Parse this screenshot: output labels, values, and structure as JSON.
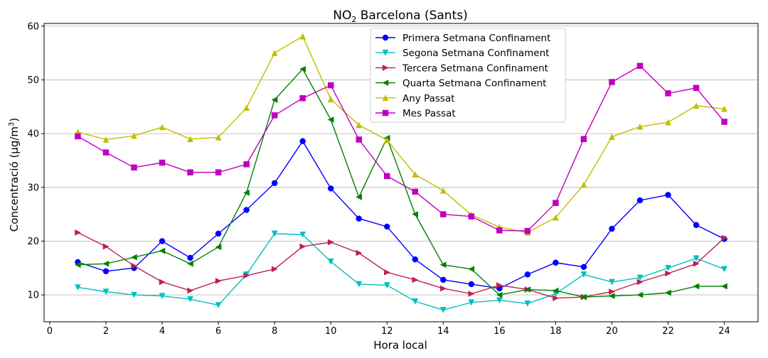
{
  "chart_data": {
    "type": "line",
    "title_main": "NO",
    "title_sub": "2",
    "title_rest": " Barcelona (Sants)",
    "xlabel": "Hora local",
    "ylabel_pre": "Concentració (μg/m",
    "ylabel_sup": "3",
    "ylabel_post": ")",
    "xlim": [
      -0.2,
      25.2
    ],
    "ylim": [
      5,
      60.5
    ],
    "xticks": [
      0,
      2,
      4,
      6,
      8,
      10,
      12,
      14,
      16,
      18,
      20,
      22,
      24
    ],
    "yticks": [
      10,
      20,
      30,
      40,
      50,
      60
    ],
    "grid": "horizontal",
    "legend_position": "top-center",
    "x": [
      1,
      2,
      3,
      4,
      5,
      6,
      7,
      8,
      9,
      10,
      11,
      12,
      13,
      14,
      15,
      16,
      17,
      18,
      19,
      20,
      21,
      22,
      23,
      24
    ],
    "series": [
      {
        "name": "Primera Setmana Confinament",
        "color": "#0000ff",
        "marker": "circle",
        "values": [
          16.1,
          14.4,
          15.0,
          20.0,
          16.9,
          21.4,
          25.8,
          30.8,
          38.6,
          29.8,
          24.2,
          22.7,
          16.6,
          12.8,
          12.0,
          11.2,
          13.8,
          16.0,
          15.2,
          22.3,
          27.6,
          28.6,
          23.0,
          20.4
        ]
      },
      {
        "name": "Segona Setmana Confinament",
        "color": "#00bfbf",
        "marker": "triangle-down",
        "values": [
          11.4,
          10.6,
          10.0,
          9.8,
          9.2,
          8.1,
          13.8,
          21.4,
          21.2,
          16.2,
          12.0,
          11.8,
          8.8,
          7.2,
          8.6,
          9.0,
          8.4,
          10.2,
          13.8,
          12.4,
          13.2,
          15.0,
          16.8,
          14.8
        ]
      },
      {
        "name": "Tercera Setmana Confinament",
        "color": "#bf1f4f",
        "marker": "triangle-right",
        "values": [
          21.6,
          19.0,
          15.4,
          12.4,
          10.8,
          12.6,
          13.6,
          14.8,
          19.0,
          19.8,
          17.8,
          14.2,
          12.8,
          11.2,
          10.2,
          11.8,
          11.0,
          9.4,
          9.6,
          10.6,
          12.4,
          14.0,
          15.8,
          20.6
        ]
      },
      {
        "name": "Quarta Setmana Confinament",
        "color": "#008000",
        "marker": "triangle-left",
        "values": [
          15.6,
          15.8,
          17.0,
          18.2,
          15.8,
          18.9,
          29.0,
          46.3,
          52.0,
          42.6,
          28.2,
          39.2,
          25.0,
          15.6,
          14.8,
          10.0,
          11.0,
          10.8,
          9.6,
          9.8,
          10.0,
          10.4,
          11.6,
          11.6
        ]
      },
      {
        "name": "Any Passat",
        "color": "#bfbf00",
        "marker": "triangle-up",
        "values": [
          40.3,
          38.9,
          39.6,
          41.2,
          39.0,
          39.3,
          44.8,
          55.0,
          58.1,
          46.4,
          41.6,
          38.8,
          32.4,
          29.4,
          24.9,
          22.6,
          21.6,
          24.4,
          30.5,
          39.4,
          41.3,
          42.1,
          45.2,
          44.6
        ]
      },
      {
        "name": "Mes Passat",
        "color": "#bf00bf",
        "marker": "square",
        "values": [
          39.5,
          36.5,
          33.7,
          34.6,
          32.8,
          32.8,
          34.3,
          43.4,
          46.6,
          49.0,
          38.9,
          32.1,
          29.2,
          25.0,
          24.6,
          22.0,
          21.9,
          27.1,
          39.0,
          49.6,
          52.6,
          47.5,
          48.5,
          42.2
        ]
      }
    ]
  }
}
